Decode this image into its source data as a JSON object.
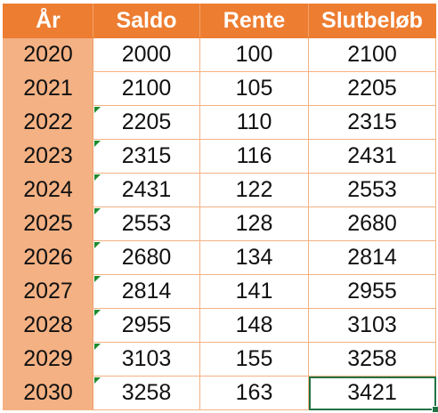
{
  "table": {
    "headers": [
      "År",
      "Saldo",
      "Rente",
      "Slutbeløb"
    ],
    "rows": [
      {
        "year": "2020",
        "saldo": "2000",
        "rente": "100",
        "slut": "2100",
        "flag": false
      },
      {
        "year": "2021",
        "saldo": "2100",
        "rente": "105",
        "slut": "2205",
        "flag": false
      },
      {
        "year": "2022",
        "saldo": "2205",
        "rente": "110",
        "slut": "2315",
        "flag": true
      },
      {
        "year": "2023",
        "saldo": "2315",
        "rente": "116",
        "slut": "2431",
        "flag": true
      },
      {
        "year": "2024",
        "saldo": "2431",
        "rente": "122",
        "slut": "2553",
        "flag": true
      },
      {
        "year": "2025",
        "saldo": "2553",
        "rente": "128",
        "slut": "2680",
        "flag": true
      },
      {
        "year": "2026",
        "saldo": "2680",
        "rente": "134",
        "slut": "2814",
        "flag": true
      },
      {
        "year": "2027",
        "saldo": "2814",
        "rente": "141",
        "slut": "2955",
        "flag": true
      },
      {
        "year": "2028",
        "saldo": "2955",
        "rente": "148",
        "slut": "3103",
        "flag": true
      },
      {
        "year": "2029",
        "saldo": "3103",
        "rente": "155",
        "slut": "3258",
        "flag": true
      },
      {
        "year": "2030",
        "saldo": "3258",
        "rente": "163",
        "slut": "3421",
        "flag": true
      }
    ]
  },
  "colors": {
    "header_bg": "#ED7D31",
    "header_text": "#FFFFFF",
    "year_bg": "#F4B183",
    "border": "#F4B183",
    "error_flag": "#1E8C2E",
    "selection": "#217346"
  }
}
